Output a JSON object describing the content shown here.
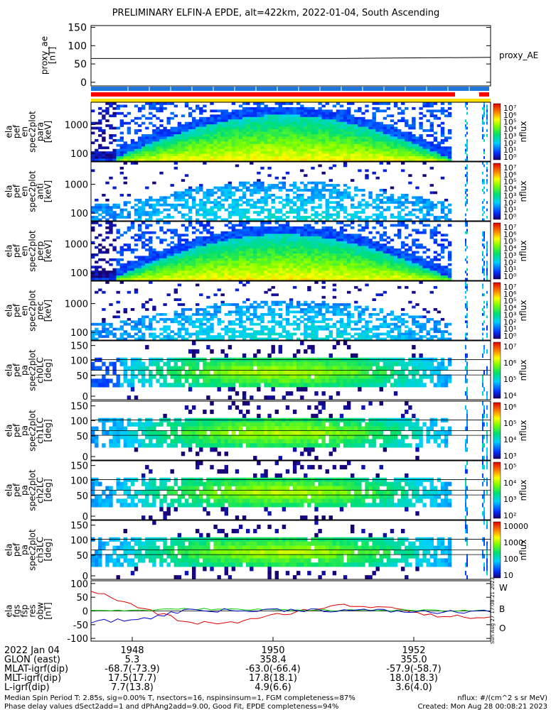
{
  "title": "PRELIMINARY ELFIN-A EPDE, alt=422km, 2022-01-04, South Ascending",
  "proxy_ae": {
    "ylabel": [
      "proxy_ae",
      "[nT]"
    ],
    "yticks": [
      "150",
      "100",
      "50",
      "0"
    ],
    "ylim": [
      -10,
      155
    ],
    "legend": "proxy_AE",
    "value": 65
  },
  "bars": {
    "blue": "#1e78dc",
    "red": "#ff0000",
    "yellow": "#ffe000"
  },
  "panels": [
    {
      "id": "en-para",
      "ylabel": [
        "ela",
        "pef",
        "en",
        "spec2plot",
        "para",
        "[keV]"
      ],
      "yticks": [
        "1000",
        "100"
      ],
      "cb_ticks": [
        "10⁷",
        "10⁶",
        "10⁵",
        "10⁴",
        "10³",
        "10²",
        "10¹",
        "10⁰"
      ],
      "cb_label": "nflux"
    },
    {
      "id": "en-anti",
      "ylabel": [
        "ela",
        "pef",
        "en",
        "spec2plot",
        "anti",
        "[keV]"
      ],
      "yticks": [
        "1000",
        "100"
      ],
      "cb_ticks": [
        "10⁷",
        "10⁶",
        "10⁵",
        "10⁴",
        "10³",
        "10²",
        "10¹",
        "10⁰"
      ],
      "cb_label": "nflux"
    },
    {
      "id": "en-perp",
      "ylabel": [
        "ela",
        "pef",
        "en",
        "spec2plot",
        "perp",
        "[keV]"
      ],
      "yticks": [
        "1000",
        "100"
      ],
      "cb_ticks": [
        "10⁷",
        "10⁶",
        "10⁵",
        "10⁴",
        "10³",
        "10²",
        "10¹",
        "10⁰"
      ],
      "cb_label": "nflux"
    },
    {
      "id": "en-prec",
      "ylabel": [
        "ela",
        "pef",
        "en",
        "spec2plot",
        "prec",
        "[keV]"
      ],
      "yticks": [
        "1000",
        "100"
      ],
      "cb_ticks": [
        "10⁷",
        "10⁶",
        "10⁵",
        "10⁴",
        "10³",
        "10²",
        "10¹",
        "10⁰"
      ],
      "cb_label": "nflux"
    },
    {
      "id": "pa-ch0",
      "ylabel": [
        "ela",
        "pef",
        "pa",
        "spec2plot",
        "ch0LC",
        "[deg]"
      ],
      "yticks": [
        "150",
        "100",
        "50",
        "0"
      ],
      "cb_ticks": [
        "10⁷",
        "10⁶",
        "10⁵",
        "10⁴"
      ],
      "cb_label": "nflux"
    },
    {
      "id": "pa-ch1",
      "ylabel": [
        "ela",
        "pef",
        "pa",
        "spec2plot",
        "ch1LC",
        "[deg]"
      ],
      "yticks": [
        "150",
        "100",
        "50",
        "0"
      ],
      "cb_ticks": [
        "10⁶",
        "10⁵",
        "10⁴",
        "10³"
      ],
      "cb_label": "nflux"
    },
    {
      "id": "pa-ch2",
      "ylabel": [
        "ela",
        "pef",
        "pa",
        "spec2plot",
        "ch2LC",
        "[deg]"
      ],
      "yticks": [
        "150",
        "100",
        "50",
        "0"
      ],
      "cb_ticks": [
        "10⁵",
        "10⁴",
        "10³",
        "10²"
      ],
      "cb_label": "nflux"
    },
    {
      "id": "pa-ch3",
      "ylabel": [
        "ela",
        "pef",
        "pa",
        "spec2plot",
        "ch3LC",
        "[deg]"
      ],
      "yticks": [
        "150",
        "100",
        "50",
        "0"
      ],
      "cb_ticks": [
        "10000",
        "1000",
        "100",
        "10"
      ],
      "cb_label": "nflux"
    }
  ],
  "mag": {
    "ylabel": [
      "ela",
      "fgs",
      "fsp",
      "res",
      "obw",
      "[nT]"
    ],
    "yticks": [
      "100",
      "50",
      "0",
      "-50",
      "-100"
    ],
    "ylim": [
      -110,
      110
    ],
    "legend": [
      "W",
      "B",
      "O"
    ],
    "colors": [
      "#dd0000",
      "#00cc00",
      "#0000cc"
    ],
    "side_note": "Sun Aug 27 17:08:21 2023"
  },
  "x_ticks": [
    "1948",
    "1950",
    "1952"
  ],
  "ephem": {
    "labels": [
      "2022 Jan 04",
      "GLON (east)",
      "MLAT-igrf(dip)",
      "MLT-igrf(dip)",
      "L-igrf(dip)"
    ],
    "rows": [
      [
        "5.3",
        "358.4",
        "355.0"
      ],
      [
        "-68.7(-73.9)",
        "-63.0(-66.4)",
        "-57.9(-58.7)"
      ],
      [
        "17.5(17.7)",
        "17.8(18.1)",
        "18.0(18.3)"
      ],
      [
        "7.7(13.8)",
        "4.9(6.6)",
        "3.6(4.0)"
      ]
    ]
  },
  "footer": {
    "left1": "Median Spin Period T: 2.85s, sig=0.00% T, nsectors=16, nspinsinsum=1, FGM completeness=87%",
    "left2": "Phase delay values dSect2add=1 and dPhAng2add=9.00, Good Fit, EPDE completeness=94%",
    "right1": "nflux: #/(cm^2 s sr MeV)",
    "right2": "Created: Mon Aug 28 00:08:21 2023"
  },
  "chart_data": [
    {
      "type": "line",
      "title": "PRELIMINARY ELFIN-A EPDE, alt=422km, 2022-01-04, South Ascending",
      "x": [
        "1946:30",
        "1947",
        "1948",
        "1949",
        "1950",
        "1951",
        "1952",
        "1953",
        "1953:50"
      ],
      "series": [
        {
          "name": "proxy_AE",
          "values": [
            65,
            65,
            65,
            65,
            65,
            65,
            66,
            67,
            68
          ]
        }
      ],
      "ylabel": "proxy_ae [nT]",
      "ylim": [
        -10,
        155
      ]
    },
    {
      "type": "line",
      "x": [
        "1946:30",
        "1947",
        "1948",
        "1949",
        "1950",
        "1951",
        "1952",
        "1953",
        "1953:50"
      ],
      "series": [
        {
          "name": "W",
          "values": [
            75,
            10,
            -45,
            -40,
            -5,
            20,
            15,
            -20,
            -25
          ]
        },
        {
          "name": "B",
          "values": [
            2,
            2,
            8,
            5,
            4,
            3,
            2,
            1,
            0
          ]
        },
        {
          "name": "O",
          "values": [
            -40,
            -30,
            5,
            0,
            5,
            2,
            0,
            -5,
            0
          ]
        }
      ],
      "ylabel": "ela fgs fsp res obw [nT]",
      "ylim": [
        -110,
        110
      ],
      "legend": "right"
    },
    {
      "type": "heatmap",
      "ylabel": "ela pef en spec2plot [keV]",
      "ylim": [
        70,
        5000
      ],
      "scale": "log",
      "colorbar": "nflux",
      "panels": [
        "para",
        "anti",
        "perp",
        "prec"
      ]
    },
    {
      "type": "heatmap",
      "ylabel": "ela pef pa spec2plot [deg]",
      "ylim": [
        0,
        180
      ],
      "colorbar": "nflux",
      "panels": [
        "ch0LC",
        "ch1LC",
        "ch2LC",
        "ch3LC"
      ]
    }
  ]
}
